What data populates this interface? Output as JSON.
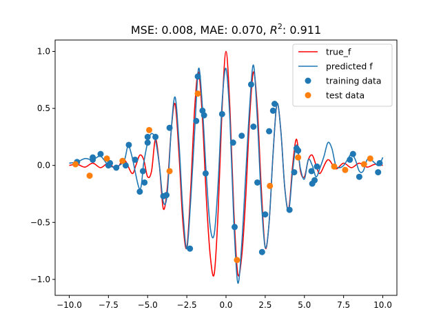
{
  "chart_data": {
    "type": "line",
    "title": "MSE: 0.008, MAE: 0.070, R²: 0.911",
    "title_parts": {
      "base": "MSE: 0.008, MAE: 0.070, ",
      "r_letter": "R",
      "r_exp": "2",
      "r_value": ": 0.911"
    },
    "xlabel": "",
    "ylabel": "",
    "xlim": [
      -10.9,
      10.9
    ],
    "ylim": [
      -1.14,
      1.1
    ],
    "grid": false,
    "legend_position": "top-right",
    "x_ticks": [
      -10.0,
      -7.5,
      -5.0,
      -2.5,
      0.0,
      2.5,
      5.0,
      7.5,
      10.0
    ],
    "x_tick_labels": [
      "−10.0",
      "−7.5",
      "−5.0",
      "−2.5",
      "0.0",
      "2.5",
      "5.0",
      "7.5",
      "10.0"
    ],
    "y_ticks": [
      -1.0,
      -0.5,
      0.0,
      0.5,
      1.0
    ],
    "y_tick_labels": [
      "−1.0",
      "−0.5",
      "0.0",
      "0.5",
      "1.0"
    ],
    "series": [
      {
        "name": "true_f",
        "kind": "line",
        "color": "#ff0000",
        "points": [
          [
            -10.0,
            0.0
          ],
          [
            -9.5,
            0.01
          ],
          [
            -9.0,
            -0.015
          ],
          [
            -8.5,
            0.02
          ],
          [
            -8.0,
            -0.02
          ],
          [
            -7.5,
            0.02
          ],
          [
            -7.0,
            -0.03
          ],
          [
            -6.5,
            0.05
          ],
          [
            -6.0,
            -0.07
          ],
          [
            -5.75,
            0.0
          ],
          [
            -5.5,
            0.09
          ],
          [
            -5.25,
            0.05
          ],
          [
            -5.0,
            -0.1
          ],
          [
            -4.75,
            -0.05
          ],
          [
            -4.5,
            0.23
          ],
          [
            -4.25,
            0.0
          ],
          [
            -4.0,
            -0.38
          ],
          [
            -3.75,
            -0.2
          ],
          [
            -3.5,
            0.3
          ],
          [
            -3.25,
            0.54
          ],
          [
            -3.0,
            0.1
          ],
          [
            -2.75,
            -0.5
          ],
          [
            -2.5,
            -0.72
          ],
          [
            -2.25,
            -0.2
          ],
          [
            -2.0,
            0.5
          ],
          [
            -1.75,
            0.82
          ],
          [
            -1.5,
            0.4
          ],
          [
            -1.25,
            -0.3
          ],
          [
            -1.0,
            -0.8
          ],
          [
            -0.75,
            -0.95
          ],
          [
            -0.5,
            -0.4
          ],
          [
            -0.25,
            0.5
          ],
          [
            0.0,
            1.0
          ],
          [
            0.25,
            0.5
          ],
          [
            0.5,
            -0.4
          ],
          [
            0.75,
            -0.95
          ],
          [
            1.0,
            -0.8
          ],
          [
            1.25,
            -0.3
          ],
          [
            1.5,
            0.4
          ],
          [
            1.75,
            0.82
          ],
          [
            2.0,
            0.5
          ],
          [
            2.25,
            -0.2
          ],
          [
            2.5,
            -0.72
          ],
          [
            2.75,
            -0.5
          ],
          [
            3.0,
            0.1
          ],
          [
            3.25,
            0.54
          ],
          [
            3.5,
            0.3
          ],
          [
            3.75,
            -0.2
          ],
          [
            4.0,
            -0.38
          ],
          [
            4.25,
            0.0
          ],
          [
            4.5,
            0.23
          ],
          [
            4.75,
            -0.05
          ],
          [
            5.0,
            -0.1
          ],
          [
            5.25,
            0.05
          ],
          [
            5.5,
            0.09
          ],
          [
            5.75,
            0.0
          ],
          [
            6.0,
            -0.07
          ],
          [
            6.5,
            0.05
          ],
          [
            7.0,
            -0.03
          ],
          [
            7.5,
            0.02
          ],
          [
            8.0,
            -0.02
          ],
          [
            8.5,
            0.02
          ],
          [
            9.0,
            -0.015
          ],
          [
            9.5,
            0.01
          ],
          [
            10.0,
            0.0
          ]
        ]
      },
      {
        "name": "predicted f",
        "kind": "line",
        "color": "#1f77b4",
        "points": [
          [
            -10.0,
            0.02
          ],
          [
            -9.5,
            0.03
          ],
          [
            -9.0,
            0.06
          ],
          [
            -8.5,
            0.05
          ],
          [
            -8.0,
            0.08
          ],
          [
            -7.5,
            0.0
          ],
          [
            -7.0,
            -0.01
          ],
          [
            -6.5,
            0.04
          ],
          [
            -6.25,
            0.17
          ],
          [
            -6.0,
            0.08
          ],
          [
            -5.5,
            -0.21
          ],
          [
            -5.25,
            0.02
          ],
          [
            -5.0,
            0.2
          ],
          [
            -4.75,
            0.28
          ],
          [
            -4.5,
            0.22
          ],
          [
            -4.25,
            0.0
          ],
          [
            -4.0,
            -0.32
          ],
          [
            -3.75,
            -0.25
          ],
          [
            -3.5,
            0.3
          ],
          [
            -3.25,
            0.6
          ],
          [
            -3.0,
            0.2
          ],
          [
            -2.75,
            -0.4
          ],
          [
            -2.5,
            -0.73
          ],
          [
            -2.25,
            -0.3
          ],
          [
            -2.0,
            0.3
          ],
          [
            -1.75,
            0.85
          ],
          [
            -1.5,
            0.5
          ],
          [
            -1.25,
            -0.1
          ],
          [
            -1.0,
            -0.55
          ],
          [
            -0.75,
            -0.6
          ],
          [
            -0.5,
            -0.15
          ],
          [
            -0.25,
            0.55
          ],
          [
            0.0,
            0.85
          ],
          [
            0.25,
            0.4
          ],
          [
            0.5,
            -0.5
          ],
          [
            0.75,
            -1.03
          ],
          [
            1.0,
            -0.7
          ],
          [
            1.25,
            -0.1
          ],
          [
            1.5,
            0.5
          ],
          [
            1.75,
            0.88
          ],
          [
            2.0,
            0.4
          ],
          [
            2.25,
            -0.3
          ],
          [
            2.5,
            -0.72
          ],
          [
            2.75,
            -0.5
          ],
          [
            3.0,
            0.1
          ],
          [
            3.25,
            0.54
          ],
          [
            3.5,
            0.3
          ],
          [
            3.75,
            -0.2
          ],
          [
            4.0,
            -0.4
          ],
          [
            4.25,
            -0.05
          ],
          [
            4.5,
            0.18
          ],
          [
            4.75,
            -0.03
          ],
          [
            5.0,
            -0.12
          ],
          [
            5.25,
            0.05
          ],
          [
            5.5,
            0.0
          ],
          [
            5.75,
            -0.1
          ],
          [
            6.0,
            -0.02
          ],
          [
            6.25,
            0.08
          ],
          [
            6.5,
            0.2
          ],
          [
            6.75,
            0.15
          ],
          [
            7.0,
            0.0
          ],
          [
            7.25,
            -0.02
          ],
          [
            7.5,
            0.0
          ],
          [
            7.75,
            0.05
          ],
          [
            8.0,
            0.1
          ],
          [
            8.25,
            0.05
          ],
          [
            8.5,
            -0.05
          ],
          [
            8.75,
            -0.05
          ],
          [
            9.0,
            0.05
          ],
          [
            9.25,
            0.05
          ],
          [
            9.5,
            0.02
          ],
          [
            9.75,
            0.0
          ],
          [
            10.0,
            0.07
          ]
        ]
      },
      {
        "name": "training data",
        "kind": "scatter",
        "color": "#1f77b4",
        "points": [
          [
            -9.5,
            0.03
          ],
          [
            -8.5,
            0.07
          ],
          [
            -8.5,
            0.05
          ],
          [
            -8.0,
            0.1
          ],
          [
            -7.5,
            0.0
          ],
          [
            -7.4,
            0.02
          ],
          [
            -7.0,
            -0.02
          ],
          [
            -6.4,
            0.0
          ],
          [
            -6.2,
            0.18
          ],
          [
            -5.8,
            0.05
          ],
          [
            -5.5,
            -0.23
          ],
          [
            -5.3,
            -0.05
          ],
          [
            -5.2,
            -0.15
          ],
          [
            -5.0,
            0.25
          ],
          [
            -5.0,
            0.2
          ],
          [
            -4.5,
            0.25
          ],
          [
            -4.0,
            -0.27
          ],
          [
            -3.8,
            -0.26
          ],
          [
            -3.6,
            0.33
          ],
          [
            -2.3,
            -0.73
          ],
          [
            -1.9,
            0.39
          ],
          [
            -1.8,
            0.78
          ],
          [
            -1.5,
            0.48
          ],
          [
            -1.4,
            0.44
          ],
          [
            -1.3,
            -0.07
          ],
          [
            -0.25,
            0.45
          ],
          [
            0.45,
            0.2
          ],
          [
            0.55,
            -0.54
          ],
          [
            1.0,
            0.26
          ],
          [
            1.6,
            0.71
          ],
          [
            1.75,
            0.34
          ],
          [
            2.0,
            -0.15
          ],
          [
            2.3,
            -0.76
          ],
          [
            2.5,
            -0.43
          ],
          [
            2.75,
            0.3
          ],
          [
            3.0,
            0.48
          ],
          [
            3.1,
            0.54
          ],
          [
            4.05,
            -0.39
          ],
          [
            4.35,
            -0.06
          ],
          [
            4.5,
            0.15
          ],
          [
            4.6,
            0.13
          ],
          [
            5.45,
            -0.05
          ],
          [
            5.5,
            -0.16
          ],
          [
            5.65,
            -0.13
          ],
          [
            5.8,
            -0.01
          ],
          [
            7.9,
            0.05
          ],
          [
            8.1,
            0.1
          ],
          [
            8.5,
            -0.1
          ],
          [
            9.7,
            -0.06
          ],
          [
            9.8,
            0.02
          ]
        ]
      },
      {
        "name": "test data",
        "kind": "scatter",
        "color": "#ff7f0e",
        "points": [
          [
            -9.6,
            0.01
          ],
          [
            -8.7,
            -0.09
          ],
          [
            -7.6,
            0.06
          ],
          [
            -6.6,
            0.04
          ],
          [
            -4.9,
            0.31
          ],
          [
            -3.6,
            -0.05
          ],
          [
            -1.8,
            0.63
          ],
          [
            0.7,
            -0.83
          ],
          [
            2.8,
            -0.18
          ],
          [
            4.6,
            0.07
          ],
          [
            6.9,
            -0.01
          ],
          [
            7.6,
            -0.04
          ],
          [
            8.8,
            0.01
          ],
          [
            9.2,
            0.06
          ]
        ]
      }
    ]
  }
}
